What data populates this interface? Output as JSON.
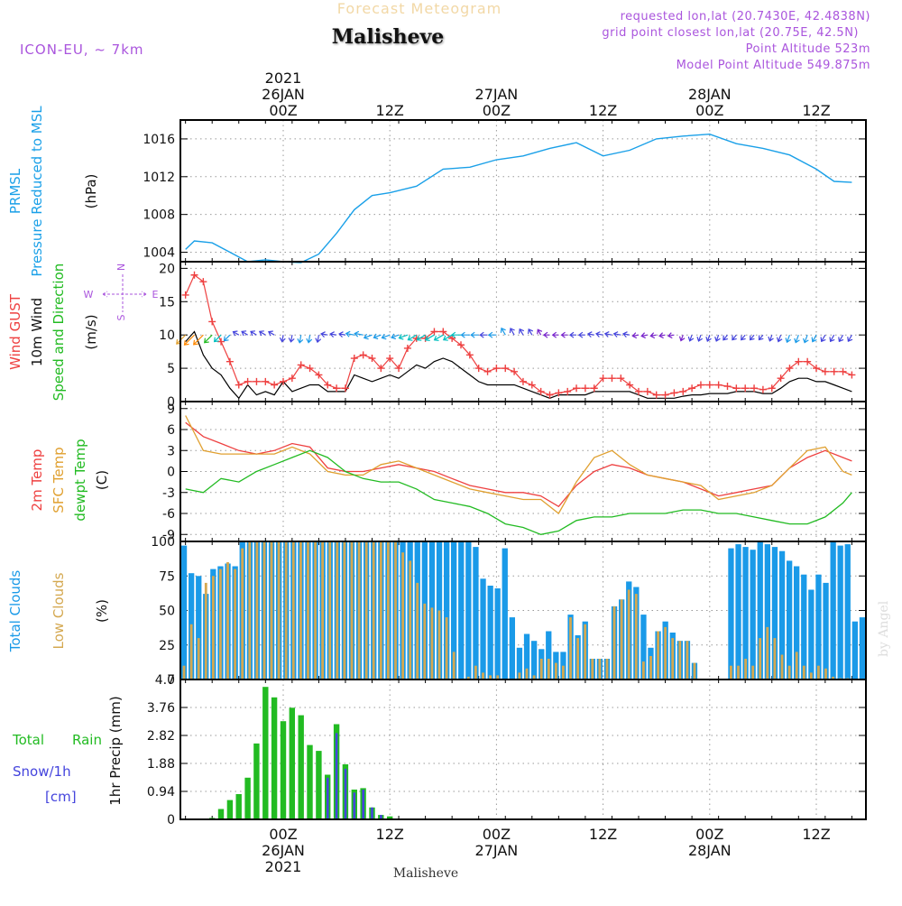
{
  "header": {
    "subtitle": "Forecast Meteogram",
    "title": "Malisheve",
    "model": "ICON-EU, ~ 7km",
    "requested": "requested lon,lat (20.7430E, 42.4838N)",
    "gridpoint": "grid point closest lon,lat (20.75E, 42.5N)",
    "point_alt": "Point Altitude 523m",
    "model_alt": "Model Point Altitude 549.875m",
    "footer": "Malisheve",
    "watermark": "by Angel"
  },
  "time_axis": {
    "year": "2021",
    "day_labels": [
      "26JAN",
      "27JAN",
      "28JAN"
    ],
    "hour_labels": [
      "00Z",
      "12Z",
      "00Z",
      "12Z",
      "00Z",
      "12Z"
    ],
    "tick_hours": [
      0,
      12,
      24,
      36,
      48,
      60
    ]
  },
  "colors": {
    "pressure": "#1aa0e8",
    "gust": "#ee4040",
    "wind": "#000000",
    "temp2m": "#ee4040",
    "sfctemp": "#e0a030",
    "dewpt": "#22bb22",
    "total_clouds": "#1a9ae8",
    "low_clouds": "#d4a850",
    "rain": "#22bb22",
    "snow": "#4444dd",
    "purple": "#aa55dd"
  },
  "chart_data": [
    {
      "type": "line",
      "panel": "pressure",
      "ylabel": [
        "PRMSL",
        "Pressure Reduced to MSL",
        "(hPa)"
      ],
      "yticks": [
        "1016",
        "1012",
        "1008",
        "1004"
      ],
      "ylim": [
        1003,
        1018
      ],
      "x_hours": [
        -11,
        -10,
        -8,
        -6,
        -4,
        -2,
        0,
        2,
        4,
        6,
        8,
        10,
        12,
        15,
        18,
        21,
        24,
        27,
        30,
        33,
        36,
        39,
        42,
        45,
        48,
        51,
        54,
        57,
        60,
        62,
        64
      ],
      "series": [
        {
          "values": [
            1004.3,
            1005.2,
            1005.0,
            1004.0,
            1003.0,
            1003.2,
            1003.0,
            1002.9,
            1003.8,
            1006.0,
            1008.5,
            1010.0,
            1010.3,
            1011.0,
            1012.8,
            1013.0,
            1013.8,
            1014.2,
            1015.0,
            1015.6,
            1014.2,
            1014.8,
            1016.0,
            1016.3,
            1016.5,
            1015.5,
            1015.0,
            1014.3,
            1012.8,
            1011.5,
            1011.4
          ]
        }
      ]
    },
    {
      "type": "line",
      "panel": "wind",
      "ylabel": [
        "Wind GUST",
        "10m Wind",
        "Speed and Direction",
        "(m/s)"
      ],
      "direction_legend": [
        "N",
        "E",
        "S",
        "W"
      ],
      "yticks": [
        "20",
        "15",
        "10",
        "5",
        "0"
      ],
      "ylim": [
        0,
        21
      ],
      "x_hours": [
        -11,
        -10,
        -9,
        -8,
        -7,
        -6,
        -5,
        -4,
        -3,
        -2,
        -1,
        0,
        1,
        2,
        3,
        4,
        5,
        6,
        7,
        8,
        9,
        10,
        11,
        12,
        13,
        14,
        15,
        16,
        17,
        18,
        19,
        20,
        21,
        22,
        23,
        24,
        25,
        26,
        27,
        28,
        29,
        30,
        31,
        32,
        33,
        34,
        35,
        36,
        37,
        38,
        39,
        40,
        41,
        42,
        43,
        44,
        45,
        46,
        47,
        48,
        49,
        50,
        51,
        52,
        53,
        54,
        55,
        56,
        57,
        58,
        59,
        60,
        61,
        62,
        63,
        64
      ],
      "series": [
        {
          "name": "Wind GUST",
          "values": [
            16,
            19,
            18,
            12,
            9,
            6,
            2.5,
            3,
            3,
            3,
            2.5,
            3,
            3.5,
            5.5,
            5,
            4,
            2.5,
            2,
            2,
            6.5,
            7,
            6.5,
            5,
            6.5,
            5,
            8,
            9.5,
            9.5,
            10.5,
            10.5,
            9.5,
            8.5,
            7,
            5,
            4.5,
            5,
            5,
            4.5,
            3,
            2.5,
            1.5,
            1,
            1.3,
            1.5,
            2,
            2,
            2,
            3.5,
            3.5,
            3.5,
            2.5,
            1.5,
            1.5,
            1,
            1,
            1.3,
            1.5,
            2,
            2.5,
            2.5,
            2.5,
            2.3,
            2,
            2,
            2,
            1.8,
            2,
            3.5,
            5,
            6,
            6,
            5,
            4.5,
            4.5,
            4.5,
            4
          ]
        },
        {
          "name": "10m Wind",
          "values": [
            9,
            10.5,
            7,
            5,
            4,
            2,
            0.5,
            2.5,
            1,
            1.5,
            1,
            3,
            1.5,
            2,
            2.5,
            2.5,
            1.5,
            1.5,
            1.5,
            4,
            3.5,
            3,
            3.5,
            4,
            3.5,
            4.5,
            5.5,
            5,
            6,
            6.5,
            6,
            5,
            4,
            3,
            2.5,
            2.5,
            2.5,
            2.5,
            2,
            1.5,
            1,
            0.5,
            1,
            1,
            1,
            1,
            1.5,
            1.5,
            1.5,
            1.5,
            1.5,
            1,
            0.5,
            0.5,
            0.5,
            0.5,
            0.8,
            1,
            1,
            1.2,
            1.2,
            1.2,
            1.5,
            1.5,
            1.5,
            1.2,
            1.2,
            2,
            3,
            3.5,
            3.5,
            3,
            3,
            2.5,
            2,
            1.5
          ]
        }
      ],
      "barb_level": 10,
      "barb_dir_deg": [
        225,
        225,
        225,
        225,
        225,
        225,
        300,
        300,
        300,
        300,
        300,
        190,
        190,
        190,
        190,
        190,
        280,
        280,
        280,
        280,
        280,
        250,
        250,
        250,
        250,
        250,
        240,
        240,
        240,
        240,
        240,
        270,
        270,
        270,
        270,
        270,
        330,
        330,
        330,
        330,
        330,
        270,
        270,
        270,
        270,
        270,
        280,
        280,
        280,
        280,
        280,
        260,
        260,
        260,
        260,
        260,
        200,
        200,
        200,
        200,
        200,
        220,
        220,
        220,
        220,
        220,
        200,
        200,
        200,
        200,
        200,
        210,
        210,
        210,
        210,
        210
      ]
    },
    {
      "type": "line",
      "panel": "temperature",
      "ylabel": [
        "2m Temp",
        "SFC Temp",
        "dewpt Temp",
        "(C)"
      ],
      "yticks": [
        "9",
        "6",
        "3",
        "0",
        "-3",
        "-6",
        "-9"
      ],
      "ylim": [
        -10,
        10
      ],
      "x_hours": [
        -11,
        -9,
        -7,
        -5,
        -3,
        -1,
        1,
        3,
        5,
        7,
        9,
        11,
        13,
        15,
        17,
        19,
        21,
        23,
        25,
        27,
        29,
        31,
        33,
        35,
        37,
        39,
        41,
        43,
        45,
        47,
        49,
        51,
        53,
        55,
        57,
        59,
        61,
        63,
        64
      ],
      "series": [
        {
          "name": "2m Temp",
          "values": [
            7,
            5,
            4,
            3,
            2.5,
            3,
            4,
            3.5,
            0.5,
            0,
            0,
            0.5,
            1,
            0.5,
            0,
            -1,
            -2,
            -2.5,
            -3,
            -3,
            -3.5,
            -5,
            -2,
            0,
            1,
            0.5,
            -0.5,
            -1,
            -1.5,
            -2.5,
            -3.5,
            -3,
            -2.5,
            -2,
            0.5,
            2,
            3,
            2,
            1.5
          ]
        },
        {
          "name": "SFC Temp",
          "values": [
            8,
            3,
            2.5,
            2.5,
            2.5,
            2.5,
            3.5,
            2.5,
            0,
            -0.5,
            -0.5,
            1,
            1.5,
            0.5,
            -0.5,
            -1.5,
            -2.5,
            -3,
            -3.5,
            -4,
            -4,
            -6,
            -1.5,
            2,
            3,
            1,
            -0.5,
            -1,
            -1.5,
            -2,
            -4,
            -3.5,
            -3,
            -2,
            0.5,
            3,
            3.5,
            0,
            -0.5
          ]
        },
        {
          "name": "dewpt Temp",
          "values": [
            -2.5,
            -3,
            -1,
            -1.5,
            0,
            1,
            2,
            3,
            2,
            0,
            -1,
            -1.5,
            -1.5,
            -2.5,
            -4,
            -4.5,
            -5,
            -6,
            -7.5,
            -8,
            -9,
            -8.5,
            -7,
            -6.5,
            -6.5,
            -6,
            -6,
            -6,
            -5.5,
            -5.5,
            -6,
            -6,
            -6.5,
            -7,
            -7.5,
            -7.5,
            -6.5,
            -4.5,
            -3
          ]
        }
      ]
    },
    {
      "type": "bar",
      "panel": "clouds",
      "ylabel": [
        "Total Clouds",
        "Low Clouds",
        "(%)"
      ],
      "yticks": [
        "100",
        "75",
        "50",
        "25",
        "0"
      ],
      "ylim": [
        0,
        100
      ],
      "x_start_hour": -10,
      "series": [
        {
          "name": "Total Clouds",
          "values": [
            97,
            77,
            75,
            62,
            80,
            82,
            84,
            82,
            100,
            100,
            100,
            100,
            100,
            100,
            100,
            100,
            100,
            100,
            100,
            100,
            100,
            100,
            100,
            100,
            100,
            100,
            100,
            100,
            100,
            100,
            100,
            100,
            100,
            100,
            100,
            100,
            100,
            100,
            100,
            100,
            96,
            73,
            68,
            66,
            95,
            45,
            23,
            33,
            28,
            22,
            35,
            20,
            20,
            47,
            32,
            42,
            15,
            15,
            15,
            53,
            58,
            71,
            67,
            47,
            23,
            35,
            42,
            34,
            28,
            28,
            12,
            0,
            0,
            0,
            0,
            95,
            98,
            96,
            94,
            100,
            98,
            96,
            93,
            86,
            82,
            76,
            65,
            76,
            70,
            100,
            97,
            98,
            42,
            45
          ]
        },
        {
          "name": "Low Clouds",
          "values": [
            10,
            40,
            30,
            70,
            75,
            80,
            85,
            80,
            95,
            100,
            100,
            100,
            100,
            100,
            100,
            100,
            100,
            100,
            100,
            100,
            100,
            100,
            100,
            100,
            100,
            100,
            100,
            100,
            100,
            100,
            92,
            86,
            70,
            55,
            52,
            50,
            45,
            20,
            0,
            2,
            10,
            5,
            3,
            3,
            0,
            0,
            5,
            8,
            3,
            15,
            15,
            12,
            10,
            45,
            30,
            40,
            15,
            15,
            15,
            53,
            58,
            65,
            62,
            13,
            17,
            35,
            38,
            30,
            28,
            28,
            12,
            0,
            0,
            0,
            0,
            10,
            10,
            15,
            10,
            30,
            38,
            30,
            18,
            10,
            20,
            10,
            5,
            10,
            8,
            2,
            1,
            1,
            0,
            0
          ]
        }
      ]
    },
    {
      "type": "bar",
      "panel": "precip",
      "ylabel": [
        "1hr Precip (mm)"
      ],
      "legend": [
        "Total",
        "Rain",
        "Snow/1h",
        "[cm]"
      ],
      "yticks": [
        "4.7",
        "3.76",
        "2.82",
        "1.88",
        "0.94",
        "0"
      ],
      "ylim": [
        0,
        4.7
      ],
      "x_start_hour": -8,
      "series": [
        {
          "name": "Total Rain",
          "values": [
            0.05,
            0.35,
            0.65,
            0.85,
            1.4,
            2.55,
            4.45,
            4.1,
            3.3,
            3.75,
            3.5,
            2.5,
            2.3,
            1.5,
            3.2,
            1.85,
            1.0,
            1.05,
            0.4,
            0.15,
            0.1
          ]
        },
        {
          "name": "Snow/1h",
          "values": [
            0,
            0,
            0,
            0,
            0,
            0,
            0,
            0,
            0,
            0,
            0,
            0,
            0,
            1.4,
            2.9,
            1.7,
            0.9,
            1.0,
            0.4,
            0.15,
            0
          ]
        }
      ]
    }
  ]
}
